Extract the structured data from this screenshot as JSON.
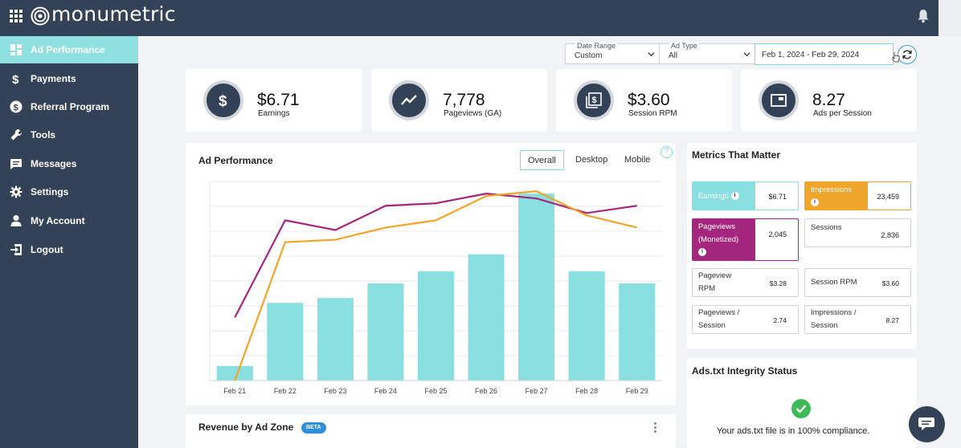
{
  "brand": {
    "name": "monumetric"
  },
  "sidebar": {
    "items": [
      {
        "label": "Ad Performance",
        "icon": "dashboard-icon",
        "active": true
      },
      {
        "label": "Payments",
        "icon": "dollar-icon"
      },
      {
        "label": "Referral Program",
        "icon": "referral-icon"
      },
      {
        "label": "Tools",
        "icon": "wrench-icon"
      },
      {
        "label": "Messages",
        "icon": "message-icon"
      },
      {
        "label": "Settings",
        "icon": "gear-icon"
      },
      {
        "label": "My Account",
        "icon": "user-icon"
      },
      {
        "label": "Logout",
        "icon": "logout-icon"
      }
    ]
  },
  "filters": {
    "date_range": {
      "title": "Date Range",
      "value": "Custom"
    },
    "ad_type": {
      "title": "Ad Type",
      "value": "All"
    },
    "dates": "Feb 1, 2024 - Feb 29, 2024"
  },
  "stats": [
    {
      "value": "$6.71",
      "label": "Earnings",
      "icon": "dollar-icon"
    },
    {
      "value": "7,778",
      "label": "Pageviews (GA)",
      "icon": "trend-icon"
    },
    {
      "value": "$3.60",
      "label": "Session RPM",
      "icon": "money-stack-icon"
    },
    {
      "value": "8.27",
      "label": "Ads per Session",
      "icon": "ad-window-icon"
    }
  ],
  "ad_performance": {
    "title": "Ad Performance",
    "tabs": [
      "Overall",
      "Desktop",
      "Mobile"
    ],
    "active_tab": "Overall",
    "help": "?"
  },
  "chart_data": {
    "type": "bar",
    "categories": [
      "Feb 21",
      "Feb 22",
      "Feb 23",
      "Feb 24",
      "Feb 25",
      "Feb 26",
      "Feb 27",
      "Feb 28",
      "Feb 29"
    ],
    "series": [
      {
        "type": "bar",
        "color": "#8ae0e0",
        "values": [
          6,
          32,
          34,
          40,
          45,
          52,
          77,
          45,
          40
        ]
      },
      {
        "type": "line",
        "color": "#a4277d",
        "values": [
          26,
          66,
          62,
          72,
          73,
          77,
          75,
          69,
          72
        ]
      },
      {
        "type": "line",
        "color": "#f0a52b",
        "values": [
          0,
          57,
          58,
          63,
          66,
          76,
          78,
          68,
          63
        ]
      }
    ],
    "ylim": [
      0,
      82
    ],
    "grid": true,
    "xlabel": "",
    "ylabel": ""
  },
  "metrics": {
    "title": "Metrics That Matter",
    "tiles": [
      {
        "name": "Earnings",
        "value": "$6.71",
        "color": "#8ae0e0",
        "info": "i"
      },
      {
        "name": "Impressions",
        "value": "23,459",
        "color": "#f0a52b",
        "info": "i"
      },
      {
        "name": "Pageviews (Monetized)",
        "value": "2,045",
        "color": "#a4277d",
        "info": "i"
      },
      {
        "name": "Sessions",
        "value": "2,836"
      },
      {
        "name": "Pageview RPM",
        "value": "$3.28"
      },
      {
        "name": "Session RPM",
        "value": "$3.60"
      },
      {
        "name": "Pageviews / Session",
        "value": "2.74"
      },
      {
        "name": "Impressions / Session",
        "value": "8.27"
      }
    ]
  },
  "ads_txt": {
    "title": "Ads.txt Integrity Status",
    "message": "Your ads.txt file is in 100% compliance."
  },
  "revenue": {
    "title": "Revenue by Ad Zone",
    "badge": "BETA"
  }
}
